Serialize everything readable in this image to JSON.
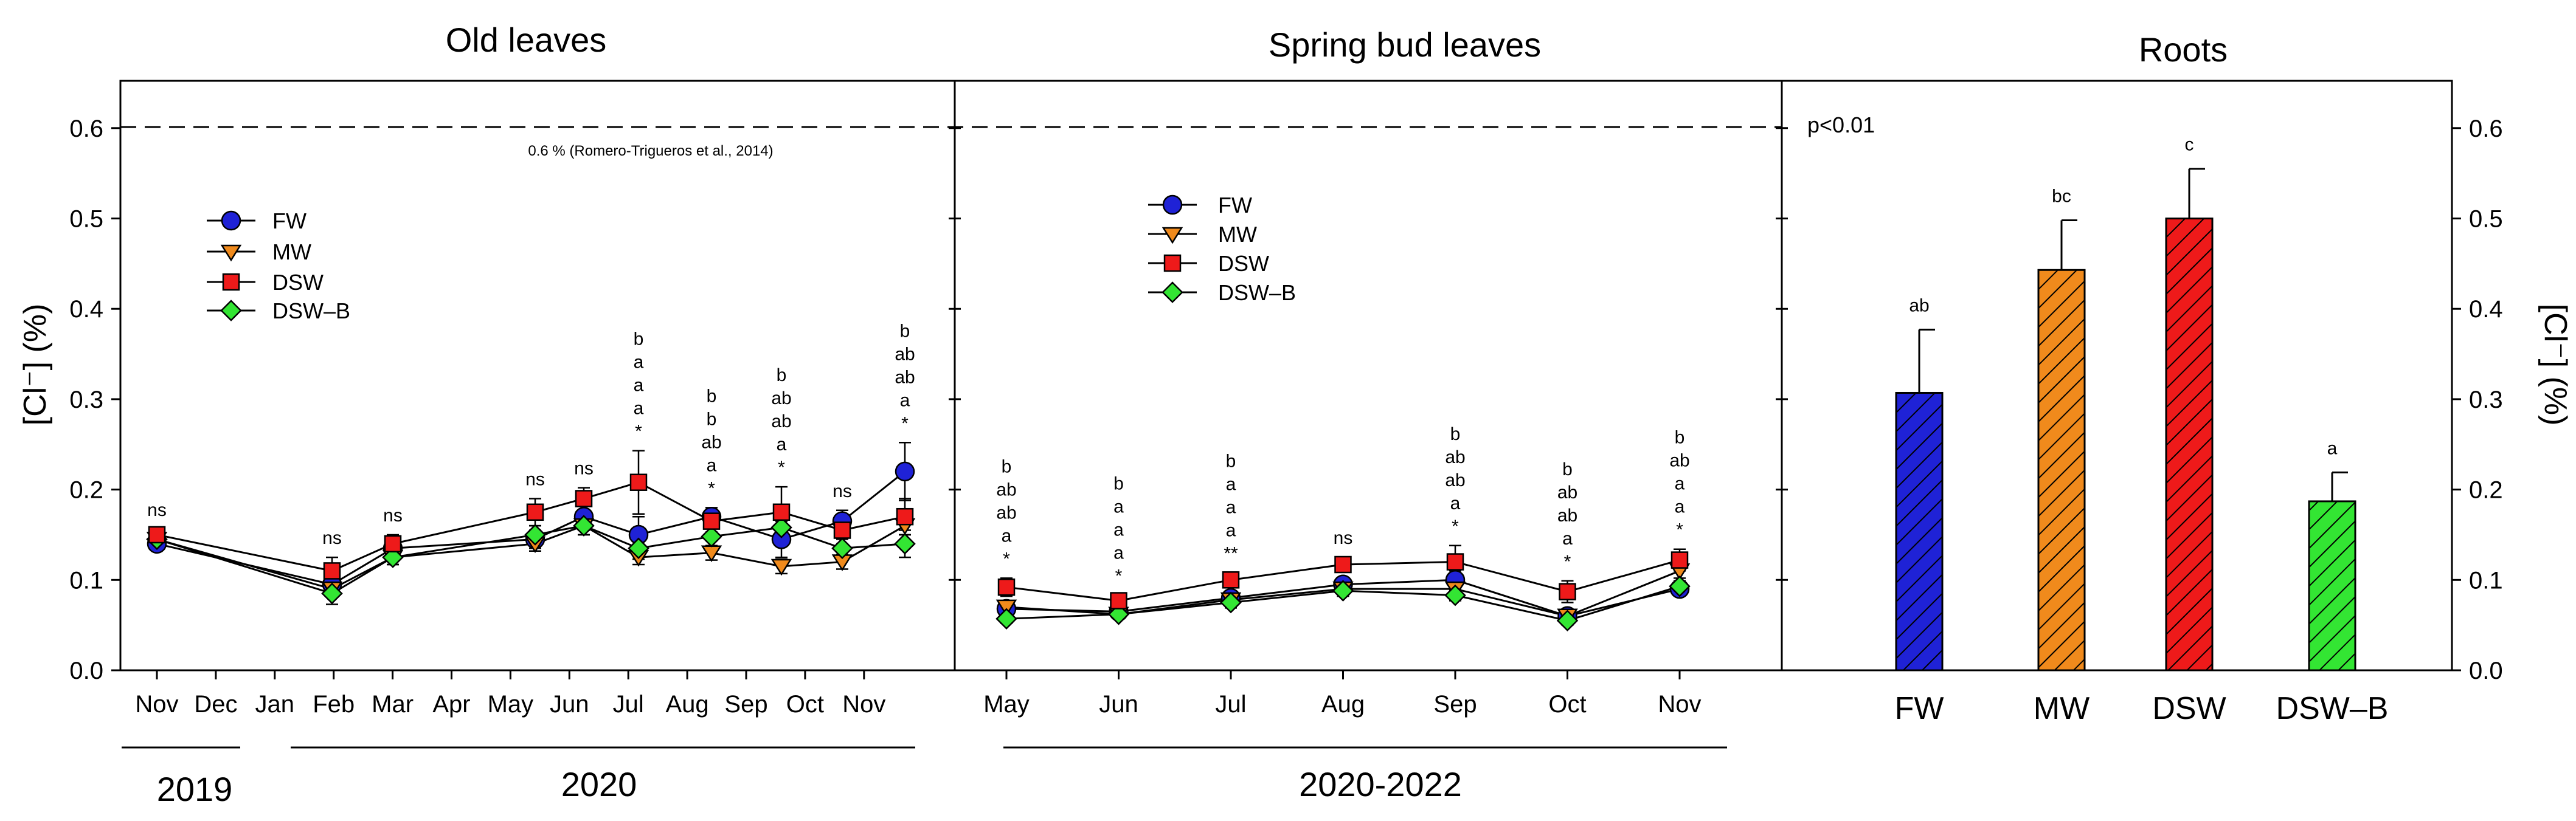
{
  "colors": {
    "FW": "#1f22d6",
    "MW": "#f08a1c",
    "DSW": "#ee1a1a",
    "DSW_B": "#33e533"
  },
  "shared": {
    "ylabel_left": "[Cl⁻] (%)",
    "ylabel_right": "[Cl⁻] (%)",
    "yticks": [
      "0.0",
      "0.1",
      "0.2",
      "0.3",
      "0.4",
      "0.5",
      "0.6"
    ],
    "reference_value": 0.6,
    "reference_label": "0.6 % (Romero-Trigueros et al., 2014)",
    "legend": [
      "FW",
      "MW",
      "DSW",
      "DSW–B"
    ]
  },
  "chart_data": [
    {
      "type": "line",
      "title": "Old leaves",
      "ylabel": "[Cl⁻] (%)",
      "ylim": [
        0,
        0.65
      ],
      "x_months": [
        "Nov",
        "Dec",
        "Jan",
        "Feb",
        "Mar",
        "Apr",
        "May",
        "Jun",
        "Jul",
        "Aug",
        "Sep",
        "Oct",
        "Nov"
      ],
      "year_labels": [
        "2019",
        "2020"
      ],
      "sample_index": [
        0,
        3,
        4,
        6,
        7,
        8,
        9,
        10,
        11,
        12
      ],
      "series": [
        {
          "name": "FW",
          "values": [
            0.14,
            0.095,
            0.135,
            0.145,
            0.17,
            0.15,
            0.17,
            0.145,
            0.165,
            0.22
          ],
          "err": [
            0.006,
            0.01,
            0.008,
            0.01,
            0.015,
            0.02,
            0.01,
            0.02,
            0.012,
            0.032
          ]
        },
        {
          "name": "MW",
          "values": [
            0.145,
            0.09,
            0.125,
            0.14,
            0.16,
            0.125,
            0.13,
            0.115,
            0.12,
            0.16
          ],
          "err": [
            0.006,
            0.008,
            0.008,
            0.008,
            0.01,
            0.008,
            0.008,
            0.008,
            0.008,
            0.01
          ]
        },
        {
          "name": "DSW",
          "values": [
            0.15,
            0.11,
            0.14,
            0.175,
            0.19,
            0.208,
            0.165,
            0.175,
            0.155,
            0.17
          ],
          "err": [
            0.006,
            0.015,
            0.01,
            0.015,
            0.012,
            0.035,
            0.012,
            0.028,
            0.015,
            0.02
          ]
        },
        {
          "name": "DSW–B",
          "values": [
            0.145,
            0.085,
            0.125,
            0.15,
            0.16,
            0.135,
            0.148,
            0.158,
            0.135,
            0.14
          ],
          "err": [
            0.006,
            0.012,
            0.008,
            0.01,
            0.01,
            0.012,
            0.01,
            0.015,
            0.01,
            0.015
          ]
        }
      ],
      "significance": [
        [
          "ns"
        ],
        [
          "ns"
        ],
        [
          "ns"
        ],
        [
          "ns"
        ],
        [
          "ns"
        ],
        [
          "b",
          "a",
          "a",
          "a",
          "*"
        ],
        [
          "b",
          "b",
          "ab",
          "a",
          "*"
        ],
        [
          "b",
          "ab",
          "ab",
          "a",
          "*"
        ],
        [
          "ns"
        ],
        [
          "b",
          "ab",
          "ab",
          "a",
          "*"
        ]
      ]
    },
    {
      "type": "line",
      "title": "Spring bud leaves",
      "ylim": [
        0,
        0.65
      ],
      "x_months": [
        "May",
        "Jun",
        "Jul",
        "Aug",
        "Sep",
        "Oct",
        "Nov"
      ],
      "year_labels": [
        "2020-2022"
      ],
      "series": [
        {
          "name": "FW",
          "values": [
            0.068,
            0.065,
            0.08,
            0.095,
            0.1,
            0.06,
            0.09
          ],
          "err": [
            0.006,
            0.005,
            0.006,
            0.006,
            0.01,
            0.006,
            0.006
          ]
        },
        {
          "name": "MW",
          "values": [
            0.07,
            0.062,
            0.078,
            0.09,
            0.09,
            0.06,
            0.11
          ],
          "err": [
            0.006,
            0.005,
            0.006,
            0.006,
            0.008,
            0.006,
            0.008
          ]
        },
        {
          "name": "DSW",
          "values": [
            0.092,
            0.077,
            0.1,
            0.117,
            0.12,
            0.087,
            0.122
          ],
          "err": [
            0.01,
            0.006,
            0.008,
            0.008,
            0.018,
            0.012,
            0.012
          ]
        },
        {
          "name": "DSW–B",
          "values": [
            0.057,
            0.062,
            0.075,
            0.088,
            0.083,
            0.055,
            0.093
          ],
          "err": [
            0.005,
            0.005,
            0.006,
            0.006,
            0.006,
            0.005,
            0.006
          ]
        }
      ],
      "significance": [
        [
          "b",
          "ab",
          "ab",
          "a",
          "*"
        ],
        [
          "b",
          "a",
          "a",
          "a",
          "*"
        ],
        [
          "b",
          "a",
          "a",
          "a",
          "**"
        ],
        [
          "ns"
        ],
        [
          "b",
          "ab",
          "ab",
          "a",
          "*"
        ],
        [
          "b",
          "ab",
          "ab",
          "a",
          "*"
        ],
        [
          "b",
          "ab",
          "a",
          "a",
          "*"
        ]
      ]
    },
    {
      "type": "bar",
      "title": "Roots",
      "ylim": [
        0,
        0.65
      ],
      "categories": [
        "FW",
        "MW",
        "DSW",
        "DSW–B"
      ],
      "values": [
        0.307,
        0.443,
        0.5,
        0.187
      ],
      "err": [
        0.07,
        0.055,
        0.055,
        0.032
      ],
      "letters": [
        "ab",
        "bc",
        "c",
        "a"
      ],
      "pvalue": "p<0.01"
    }
  ]
}
